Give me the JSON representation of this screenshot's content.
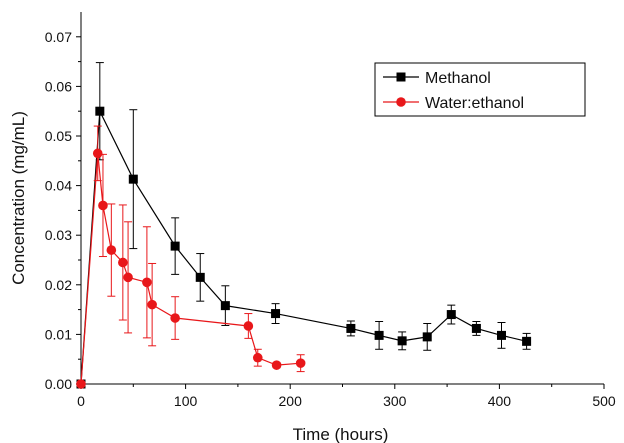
{
  "chart_data": {
    "type": "line",
    "title": "",
    "xlabel": "Time (hours)",
    "ylabel": "Concentration (mg/mL)",
    "xlim": [
      0,
      500
    ],
    "ylim": [
      0,
      0.075
    ],
    "x_ticks": [
      "0",
      "100",
      "200",
      "300",
      "400",
      "500"
    ],
    "y_ticks": [
      "0.00",
      "0.01",
      "0.02",
      "0.03",
      "0.04",
      "0.05",
      "0.06",
      "0.07"
    ],
    "grid": false,
    "legend_position": "top-right",
    "series": [
      {
        "name": "Methanol",
        "color": "#000000",
        "marker": "square",
        "x": [
          0,
          18,
          50,
          90,
          114,
          138,
          186,
          258,
          285,
          307,
          331,
          354,
          378,
          402,
          426
        ],
        "y": [
          0.0,
          0.055,
          0.0413,
          0.0278,
          0.0215,
          0.0158,
          0.0142,
          0.0112,
          0.0098,
          0.0087,
          0.0095,
          0.014,
          0.0112,
          0.0098,
          0.0086
        ],
        "err": [
          0.0,
          0.0098,
          0.014,
          0.0057,
          0.0048,
          0.004,
          0.002,
          0.0015,
          0.0028,
          0.0018,
          0.0027,
          0.0019,
          0.0014,
          0.0026,
          0.0016
        ]
      },
      {
        "name": "Water:ethanol",
        "color": "#e8171a",
        "marker": "circle",
        "x": [
          0,
          16,
          21,
          29,
          40,
          45,
          63,
          68,
          90,
          160,
          169,
          187,
          210
        ],
        "y": [
          0.0,
          0.0465,
          0.036,
          0.027,
          0.0245,
          0.0215,
          0.0205,
          0.016,
          0.0133,
          0.0117,
          0.0053,
          0.0038,
          0.0042
        ],
        "err": [
          0.0,
          0.0055,
          0.0103,
          0.0093,
          0.0116,
          0.0112,
          0.0112,
          0.0083,
          0.0043,
          0.0025,
          0.0017,
          0.0005,
          0.0017
        ]
      }
    ]
  }
}
